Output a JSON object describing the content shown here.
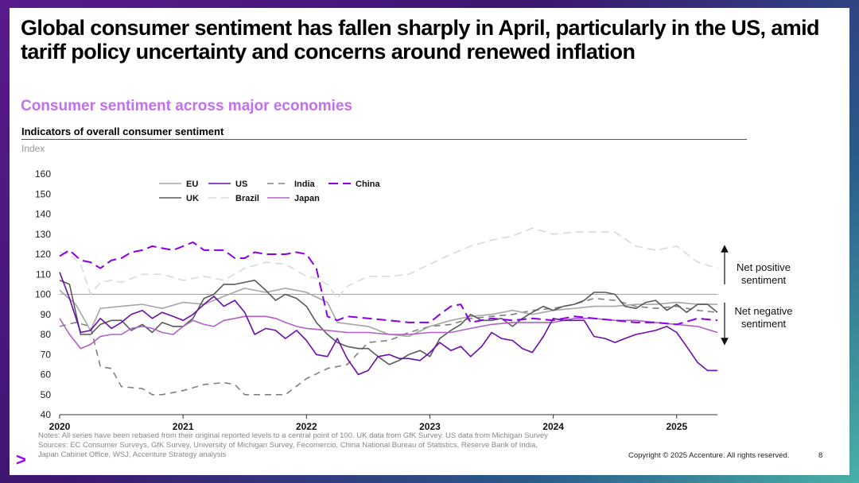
{
  "title": "Global consumer sentiment has fallen sharply in April, particularly in the US, amid tariff policy uncertainty and concerns around renewed inflation",
  "subtitle": "Consumer sentiment across major economies",
  "indicator_title": "Indicators of overall consumer sentiment",
  "notes": {
    "line1": "Notes: All series have been rebased from their original reported levels to a central point of 100. UK data from GfK Survey. US data from Michigan Survey",
    "line2": "Sources: EC Consumer Surveys, GfK Survey, University of Michigan Survey, Fecomercio, China National Bureau of Statistics, Reserve Bank of India,",
    "line3": "Japan Cabinet Office, WSJ, Accenture Strategy analysis"
  },
  "copyright": "Copyright © 2025 Accenture. All rights reserved.",
  "page_number": "8",
  "logo_glyph": ">",
  "annotations": {
    "positive": "Net positive sentiment",
    "negative": "Net negative sentiment"
  },
  "colors": {
    "accent": "#c46ef0",
    "brand": "#a100ff"
  },
  "chart_data": {
    "type": "line",
    "title": "Indicators of overall consumer sentiment",
    "ylabel": "Index",
    "xlabel": "",
    "ylim": [
      40,
      160
    ],
    "yticks": [
      40,
      50,
      60,
      70,
      80,
      90,
      100,
      110,
      120,
      130,
      140,
      150,
      160
    ],
    "xlim": [
      2020.0,
      2025.33
    ],
    "xticks": [
      2020,
      2021,
      2022,
      2023,
      2024,
      2025
    ],
    "xtick_labels": [
      "2020",
      "2021",
      "2022",
      "2023",
      "2024",
      "2025"
    ],
    "reference_line": 100,
    "grid": false,
    "legend_position": "top-left",
    "series": [
      {
        "name": "EU",
        "color": "#a6a6a6",
        "dash": "solid",
        "width": 1.6,
        "x": [
          2020.0,
          2020.13,
          2020.25,
          2020.33,
          2020.5,
          2020.67,
          2020.83,
          2021.0,
          2021.17,
          2021.33,
          2021.5,
          2021.67,
          2021.83,
          2022.0,
          2022.17,
          2022.25,
          2022.5,
          2022.67,
          2022.83,
          2023.0,
          2023.17,
          2023.33,
          2023.5,
          2023.67,
          2023.83,
          2024.0,
          2024.17,
          2024.33,
          2024.5,
          2024.67,
          2024.83,
          2025.0,
          2025.17,
          2025.33
        ],
        "y": [
          102,
          95,
          82,
          93,
          94,
          95,
          93,
          96,
          95,
          99,
          103,
          101,
          103,
          101,
          96,
          86,
          84,
          80,
          79,
          84,
          87,
          89,
          90,
          92,
          90,
          92,
          93,
          94,
          94,
          95,
          95,
          96,
          95,
          95
        ]
      },
      {
        "name": "US",
        "color": "#6a0dad",
        "dash": "solid",
        "width": 1.6,
        "x": [
          2020.0,
          2020.08,
          2020.17,
          2020.25,
          2020.33,
          2020.42,
          2020.5,
          2020.58,
          2020.67,
          2020.75,
          2020.83,
          2020.92,
          2021.0,
          2021.08,
          2021.17,
          2021.25,
          2021.33,
          2021.42,
          2021.5,
          2021.58,
          2021.67,
          2021.75,
          2021.83,
          2021.92,
          2022.0,
          2022.08,
          2022.17,
          2022.25,
          2022.33,
          2022.42,
          2022.5,
          2022.58,
          2022.67,
          2022.75,
          2022.83,
          2022.92,
          2023.0,
          2023.08,
          2023.17,
          2023.25,
          2023.33,
          2023.42,
          2023.5,
          2023.58,
          2023.67,
          2023.75,
          2023.83,
          2023.92,
          2024.0,
          2024.08,
          2024.17,
          2024.25,
          2024.33,
          2024.42,
          2024.5,
          2024.58,
          2024.67,
          2024.75,
          2024.83,
          2024.92,
          2025.0,
          2025.08,
          2025.17,
          2025.25,
          2025.33
        ],
        "y": [
          111,
          98,
          81,
          82,
          88,
          83,
          86,
          90,
          92,
          88,
          91,
          89,
          87,
          90,
          95,
          99,
          94,
          97,
          91,
          80,
          83,
          82,
          78,
          82,
          77,
          70,
          69,
          78,
          68,
          60,
          62,
          69,
          70,
          68,
          68,
          67,
          71,
          76,
          72,
          74,
          69,
          74,
          81,
          78,
          77,
          73,
          71,
          79,
          88,
          87,
          87,
          87,
          79,
          78,
          76,
          78,
          80,
          81,
          82,
          84,
          81,
          74,
          66,
          62,
          62
        ]
      },
      {
        "name": "India",
        "color": "#808080",
        "dash": "8,6",
        "width": 1.6,
        "x": [
          2020.0,
          2020.13,
          2020.25,
          2020.33,
          2020.42,
          2020.5,
          2020.67,
          2020.75,
          2020.83,
          2021.0,
          2021.17,
          2021.33,
          2021.42,
          2021.5,
          2021.67,
          2021.83,
          2022.0,
          2022.17,
          2022.33,
          2022.5,
          2022.67,
          2022.83,
          2023.0,
          2023.17,
          2023.33,
          2023.5,
          2023.67,
          2023.83,
          2024.0,
          2024.17,
          2024.33,
          2024.5,
          2024.67,
          2024.83,
          2025.0,
          2025.17,
          2025.33
        ],
        "y": [
          84,
          86,
          84,
          64,
          63,
          54,
          53,
          50,
          50,
          52,
          55,
          56,
          55,
          50,
          50,
          50,
          58,
          63,
          65,
          76,
          77,
          81,
          84,
          85,
          88,
          89,
          90,
          92,
          93,
          95,
          98,
          97,
          94,
          93,
          94,
          92,
          91
        ]
      },
      {
        "name": "China",
        "color": "#8a00e6",
        "dash": "12,6",
        "width": 2,
        "x": [
          2020.0,
          2020.08,
          2020.17,
          2020.25,
          2020.33,
          2020.42,
          2020.5,
          2020.58,
          2020.67,
          2020.75,
          2020.83,
          2020.92,
          2021.0,
          2021.08,
          2021.17,
          2021.25,
          2021.33,
          2021.42,
          2021.5,
          2021.58,
          2021.67,
          2021.75,
          2021.83,
          2021.92,
          2022.0,
          2022.08,
          2022.17,
          2022.25,
          2022.33,
          2022.5,
          2022.67,
          2022.83,
          2023.0,
          2023.08,
          2023.17,
          2023.25,
          2023.33,
          2023.5,
          2023.67,
          2023.83,
          2024.0,
          2024.17,
          2024.33,
          2024.5,
          2024.67,
          2024.83,
          2025.0,
          2025.17,
          2025.33
        ],
        "y": [
          119,
          122,
          117,
          116,
          113,
          117,
          118,
          121,
          122,
          124,
          123,
          122,
          124,
          126,
          122,
          122,
          122,
          118,
          118,
          121,
          120,
          120,
          120,
          121,
          120,
          113,
          89,
          87,
          89,
          88,
          87,
          86,
          86,
          90,
          94,
          95,
          86,
          88,
          87,
          88,
          87,
          89,
          88,
          87,
          86,
          86,
          85,
          88,
          87
        ]
      },
      {
        "name": "UK",
        "color": "#595959",
        "dash": "solid",
        "width": 1.6,
        "x": [
          2020.0,
          2020.08,
          2020.17,
          2020.25,
          2020.33,
          2020.42,
          2020.5,
          2020.58,
          2020.67,
          2020.75,
          2020.83,
          2020.92,
          2021.0,
          2021.08,
          2021.17,
          2021.25,
          2021.33,
          2021.42,
          2021.5,
          2021.58,
          2021.67,
          2021.75,
          2021.83,
          2021.92,
          2022.0,
          2022.08,
          2022.17,
          2022.25,
          2022.33,
          2022.42,
          2022.5,
          2022.58,
          2022.67,
          2022.75,
          2022.83,
          2022.92,
          2023.0,
          2023.08,
          2023.17,
          2023.25,
          2023.33,
          2023.42,
          2023.5,
          2023.58,
          2023.67,
          2023.75,
          2023.83,
          2023.92,
          2024.0,
          2024.08,
          2024.17,
          2024.25,
          2024.33,
          2024.42,
          2024.5,
          2024.58,
          2024.67,
          2024.75,
          2024.83,
          2024.92,
          2025.0,
          2025.08,
          2025.17,
          2025.25,
          2025.33
        ],
        "y": [
          107,
          105,
          80,
          80,
          85,
          87,
          87,
          82,
          85,
          81,
          86,
          84,
          84,
          88,
          98,
          100,
          105,
          105,
          106,
          107,
          102,
          97,
          100,
          98,
          94,
          86,
          80,
          76,
          74,
          73,
          73,
          69,
          65,
          67,
          70,
          72,
          69,
          78,
          82,
          85,
          90,
          87,
          87,
          88,
          84,
          88,
          91,
          94,
          92,
          94,
          95,
          97,
          101,
          101,
          100,
          94,
          93,
          96,
          97,
          92,
          95,
          91,
          95,
          95,
          91
        ]
      },
      {
        "name": "Brazil",
        "color": "#d9d9d9",
        "dash": "10,6",
        "width": 1.6,
        "x": [
          2020.0,
          2020.08,
          2020.17,
          2020.25,
          2020.33,
          2020.42,
          2020.5,
          2020.67,
          2020.83,
          2021.0,
          2021.17,
          2021.33,
          2021.5,
          2021.67,
          2021.83,
          2022.0,
          2022.08,
          2022.17,
          2022.25,
          2022.33,
          2022.5,
          2022.67,
          2022.83,
          2023.0,
          2023.17,
          2023.33,
          2023.5,
          2023.67,
          2023.83,
          2024.0,
          2024.17,
          2024.33,
          2024.5,
          2024.67,
          2024.83,
          2025.0,
          2025.17,
          2025.33
        ],
        "y": [
          121,
          120,
          115,
          100,
          106,
          107,
          106,
          110,
          110,
          107,
          109,
          107,
          113,
          116,
          115,
          109,
          108,
          105,
          98,
          104,
          109,
          109,
          110,
          115,
          120,
          124,
          127,
          129,
          133,
          130,
          131,
          131,
          131,
          124,
          122,
          124,
          116,
          113
        ]
      },
      {
        "name": "Japan",
        "color": "#b060c8",
        "dash": "solid",
        "width": 1.6,
        "x": [
          2020.0,
          2020.08,
          2020.17,
          2020.25,
          2020.33,
          2020.42,
          2020.5,
          2020.58,
          2020.67,
          2020.75,
          2020.83,
          2020.92,
          2021.0,
          2021.08,
          2021.17,
          2021.25,
          2021.33,
          2021.42,
          2021.5,
          2021.58,
          2021.67,
          2021.75,
          2021.83,
          2021.92,
          2022.0,
          2022.17,
          2022.33,
          2022.5,
          2022.67,
          2022.83,
          2023.0,
          2023.17,
          2023.33,
          2023.5,
          2023.67,
          2023.83,
          2024.0,
          2024.17,
          2024.33,
          2024.5,
          2024.67,
          2024.83,
          2025.0,
          2025.17,
          2025.33
        ],
        "y": [
          88,
          80,
          73,
          75,
          79,
          80,
          80,
          83,
          84,
          83,
          81,
          80,
          84,
          87,
          85,
          84,
          87,
          88,
          89,
          89,
          89,
          88,
          86,
          84,
          83,
          82,
          81,
          81,
          80,
          80,
          81,
          81,
          83,
          85,
          86,
          86,
          86,
          88,
          88,
          87,
          87,
          86,
          85,
          84,
          81
        ]
      }
    ],
    "legend_rows": [
      [
        "EU",
        "US",
        "India",
        "China"
      ],
      [
        "UK",
        "Brazil",
        "Japan"
      ]
    ]
  }
}
